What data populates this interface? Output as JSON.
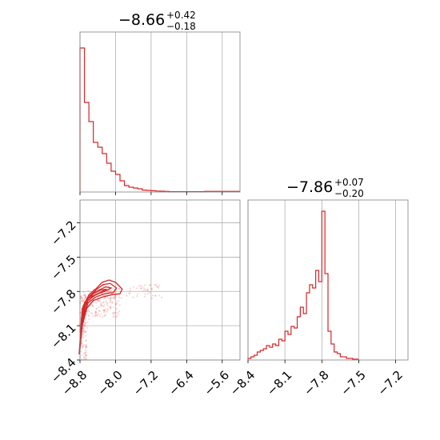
{
  "chart_data": {
    "type": "corner",
    "colors": {
      "accent": "#d62728",
      "grid": "#b0b0b0",
      "frame": "#808080"
    },
    "panels": [
      {
        "id": "marginal_param1",
        "type": "histogram",
        "title": {
          "median": "−8.66",
          "plus": "+0.42",
          "minus": "−0.18"
        },
        "xlim": [
          -8.8,
          -5.2
        ],
        "ylim": [
          0,
          1.0
        ],
        "grid": true,
        "bin_edges": [
          -8.8,
          -8.7,
          -8.6,
          -8.5,
          -8.4,
          -8.3,
          -8.2,
          -8.1,
          -8.0,
          -7.9,
          -7.8,
          -7.7,
          -7.6,
          -7.5,
          -7.4,
          -7.3,
          -7.2,
          -7.1,
          -7.0,
          -6.9,
          -6.8,
          -6.0,
          -5.2
        ],
        "counts": [
          0.9,
          0.56,
          0.44,
          0.31,
          0.28,
          0.24,
          0.18,
          0.13,
          0.11,
          0.07,
          0.04,
          0.03,
          0.025,
          0.02,
          0.012,
          0.01,
          0.008,
          0.006,
          0.005,
          0.004,
          0.002,
          0.004
        ]
      },
      {
        "id": "joint_param1_param2",
        "type": "scatter-contour",
        "xlim": [
          -8.8,
          -5.2
        ],
        "ylim": [
          -8.4,
          -7.0
        ],
        "x_ticks": [
          "−8.8",
          "−8.0",
          "−7.2",
          "−6.4",
          "−5.6"
        ],
        "x_tick_values": [
          -8.8,
          -8.0,
          -7.2,
          -6.4,
          -5.6
        ],
        "y_ticks": [
          "−7.2",
          "−7.5",
          "−7.8",
          "−8.1",
          "−8.4"
        ],
        "y_tick_values": [
          -7.2,
          -7.5,
          -7.8,
          -8.1,
          -8.4
        ],
        "grid": true,
        "contours": [
          {
            "level": "outer",
            "x": [
              -8.82,
              -8.75,
              -8.6,
              -8.45,
              -8.3,
              -8.15,
              -8.0,
              -7.85,
              -7.9,
              -8.1,
              -8.3,
              -8.5,
              -8.65,
              -8.75,
              -8.8,
              -8.82
            ],
            "y": [
              -8.35,
              -7.95,
              -7.83,
              -7.78,
              -7.72,
              -7.7,
              -7.72,
              -7.78,
              -7.82,
              -7.83,
              -7.85,
              -7.88,
              -7.95,
              -8.1,
              -8.3,
              -8.35
            ]
          },
          {
            "level": "mid",
            "x": [
              -8.8,
              -8.72,
              -8.58,
              -8.42,
              -8.28,
              -8.12,
              -7.98,
              -8.05,
              -8.25,
              -8.45,
              -8.62,
              -8.74,
              -8.8
            ],
            "y": [
              -8.25,
              -7.92,
              -7.84,
              -7.78,
              -7.74,
              -7.73,
              -7.77,
              -7.81,
              -7.82,
              -7.85,
              -7.9,
              -8.05,
              -8.25
            ]
          },
          {
            "level": "inner",
            "x": [
              -8.78,
              -8.7,
              -8.55,
              -8.38,
              -8.22,
              -8.1,
              -8.25,
              -8.45,
              -8.62,
              -8.72,
              -8.78
            ],
            "y": [
              -8.15,
              -7.9,
              -7.83,
              -7.79,
              -7.76,
              -7.77,
              -7.8,
              -7.83,
              -7.88,
              -8.0,
              -8.15
            ]
          },
          {
            "level": "core",
            "x": [
              -8.76,
              -8.66,
              -8.5,
              -8.35,
              -8.2,
              -8.35,
              -8.52,
              -8.66,
              -8.74,
              -8.76
            ],
            "y": [
              -8.05,
              -7.88,
              -7.82,
              -7.79,
              -7.78,
              -7.81,
              -7.84,
              -7.9,
              -7.98,
              -8.05
            ]
          }
        ]
      },
      {
        "id": "marginal_param2",
        "type": "histogram",
        "title": {
          "median": "−7.86",
          "plus": "+0.07",
          "minus": "−0.20"
        },
        "xlim": [
          -8.4,
          -7.1
        ],
        "ylim": [
          0,
          1.0
        ],
        "x_ticks": [
          "−8.4",
          "−8.1",
          "−7.8",
          "−7.5",
          "−7.2"
        ],
        "x_tick_values": [
          -8.4,
          -8.1,
          -7.8,
          -7.5,
          -7.2
        ],
        "grid": true,
        "bin_edges": [
          -8.4,
          -8.375,
          -8.35,
          -8.325,
          -8.3,
          -8.275,
          -8.25,
          -8.225,
          -8.2,
          -8.175,
          -8.15,
          -8.125,
          -8.1,
          -8.075,
          -8.05,
          -8.025,
          -8.0,
          -7.975,
          -7.95,
          -7.925,
          -7.9,
          -7.875,
          -7.85,
          -7.825,
          -7.8,
          -7.775,
          -7.75,
          -7.725,
          -7.7,
          -7.675,
          -7.65,
          -7.625,
          -7.6,
          -7.575,
          -7.55,
          -7.5
        ],
        "counts": [
          0.01,
          0.02,
          0.03,
          0.05,
          0.06,
          0.07,
          0.09,
          0.08,
          0.1,
          0.09,
          0.13,
          0.12,
          0.18,
          0.16,
          0.21,
          0.2,
          0.27,
          0.33,
          0.29,
          0.42,
          0.47,
          0.45,
          0.56,
          0.49,
          0.93,
          0.54,
          0.18,
          0.1,
          0.05,
          0.04,
          0.02,
          0.02,
          0.01,
          0.01,
          0.005
        ]
      }
    ]
  }
}
